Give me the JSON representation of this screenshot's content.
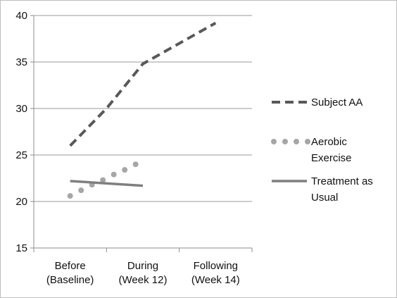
{
  "chart_data": {
    "type": "line",
    "categories": [
      "Before\n(Baseline)",
      "During\n(Week 12)",
      "Following\n(Week 14)"
    ],
    "ylim": [
      15,
      40
    ],
    "yticks": [
      15,
      20,
      25,
      30,
      35,
      40
    ],
    "grid": true,
    "legend_position": "right",
    "series": [
      {
        "name": "Subject AA",
        "style": "dashed",
        "color": "#595959",
        "points": [
          [
            0.0,
            26.0
          ],
          [
            0.5,
            30.0
          ],
          [
            1.0,
            34.8
          ],
          [
            1.5,
            37.0
          ],
          [
            2.0,
            39.2
          ]
        ]
      },
      {
        "name": "Aerobic\nExercise",
        "style": "dotted",
        "color": "#a6a6a6",
        "points": [
          [
            0.0,
            20.6
          ],
          [
            0.15,
            21.2
          ],
          [
            0.3,
            21.8
          ],
          [
            0.45,
            22.3
          ],
          [
            0.6,
            22.9
          ],
          [
            0.75,
            23.4
          ],
          [
            0.9,
            24.0
          ]
        ]
      },
      {
        "name": "Treatment as\nUsual",
        "style": "solid",
        "color": "#7f7f7f",
        "points": [
          [
            0.0,
            22.2
          ],
          [
            1.0,
            21.7
          ]
        ]
      }
    ]
  }
}
